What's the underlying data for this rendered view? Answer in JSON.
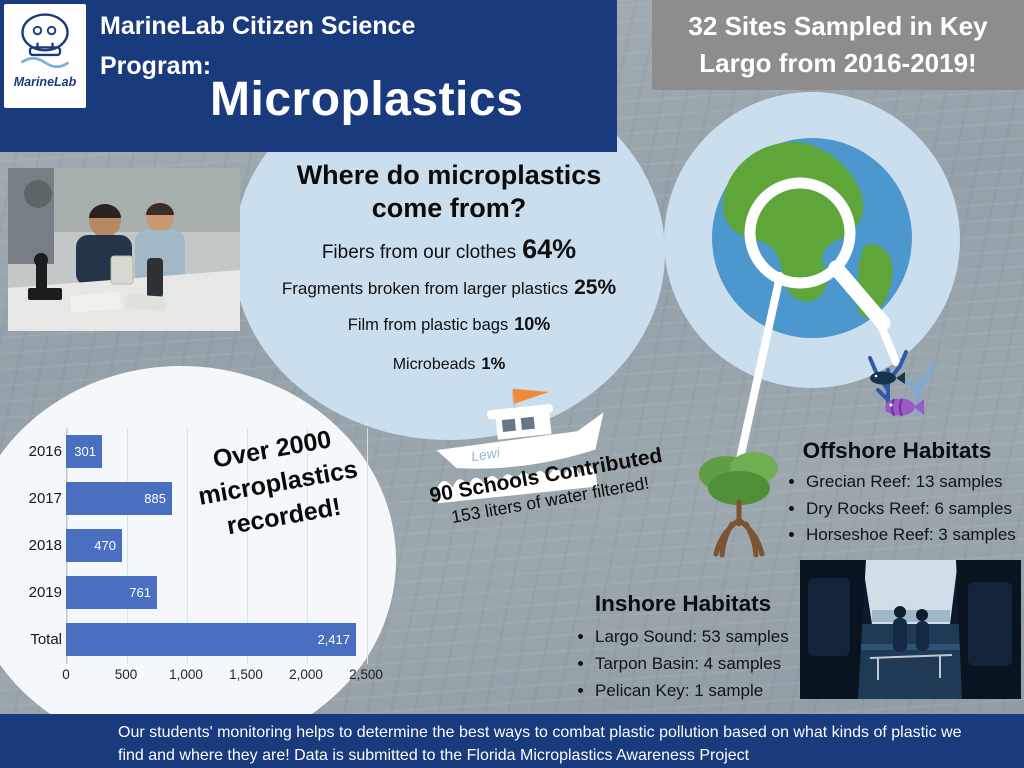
{
  "colors": {
    "navy": "#1a3a7e",
    "banner_gray": "#8d8d8d",
    "bubble_blue": "#cbdeee",
    "chart_bubble_white": "#f4f8fb",
    "bar_blue": "#4a6fc0",
    "globe_ocean": "#4c97cd",
    "globe_land": "#5ea53a",
    "flag_orange": "#ef8a3b"
  },
  "header": {
    "logo_label": "MarineLab",
    "program_line1": "MarineLab Citizen Science",
    "program_line2": "Program:",
    "title": "Microplastics"
  },
  "sites_banner": "32 Sites Sampled in Key Largo from 2016-2019!",
  "sources": {
    "heading_line1": "Where do microplastics",
    "heading_line2": "come from?",
    "items": [
      {
        "label": "Fibers from our clothes",
        "value": "64%"
      },
      {
        "label": "Fragments broken from larger plastics",
        "value": "25%"
      },
      {
        "label": "Film from plastic bags",
        "value": "10%"
      },
      {
        "label": "Microbeads",
        "value": "1%"
      }
    ]
  },
  "schools": {
    "boat_name": "Lewi",
    "line1": "90 Schools Contributed",
    "line2": "153 liters of water  filtered!"
  },
  "chart_note": {
    "line1": "Over 2000",
    "line2": "microplastics",
    "line3": "recorded!"
  },
  "chart_data": {
    "type": "bar",
    "orientation": "horizontal",
    "title": "Over 2000 microplastics recorded!",
    "categories": [
      "2016",
      "2017",
      "2018",
      "2019",
      "Total"
    ],
    "values": [
      301,
      885,
      470,
      761,
      2417
    ],
    "value_labels": [
      "301",
      "885",
      "470",
      "761",
      "2,417"
    ],
    "x_ticks": [
      "0",
      "500",
      "1,000",
      "1,500",
      "2,000",
      "2,500"
    ],
    "x_tick_values": [
      0,
      500,
      1000,
      1500,
      2000,
      2500
    ],
    "xlim": [
      0,
      2500
    ],
    "grid": true,
    "bar_color": "#4a6fc0"
  },
  "offshore": {
    "heading": "Offshore Habitats",
    "items": [
      "Grecian Reef: 13 samples",
      "Dry Rocks Reef: 6 samples",
      "Horseshoe Reef: 3 samples"
    ]
  },
  "inshore": {
    "heading": "Inshore Habitats",
    "items": [
      "Largo Sound: 53 samples",
      "Tarpon Basin: 4 samples",
      "Pelican Key: 1 sample"
    ]
  },
  "footer": {
    "line1": "Our students' monitoring helps to determine the best ways to combat plastic pollution based on what kinds of plastic we",
    "line2": "find and where they are!  Data is submitted to the Florida Microplastics Awareness Project"
  }
}
